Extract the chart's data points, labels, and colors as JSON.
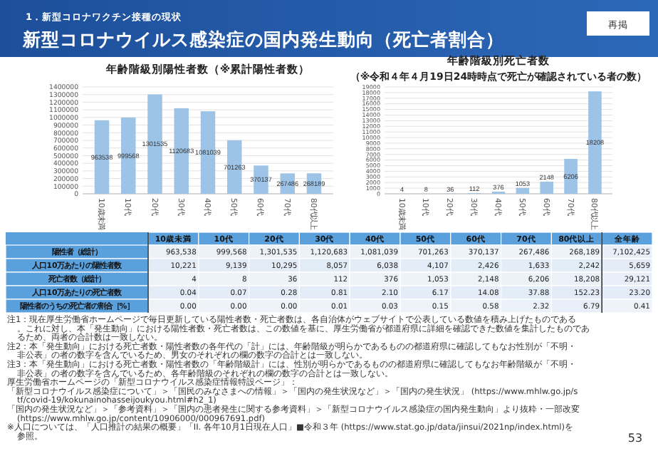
{
  "chart_data": [
    {
      "type": "other",
      "title": "新型コロナウイルス感染症の国内発生動向（死亡者割合）",
      "subtitle": "1．新型コロナワクチン接種の現状",
      "annotations": [
        "再掲"
      ]
    },
    {
      "type": "bar",
      "title": "年齢階級別陽性者数（※累計陽性者数）",
      "categories": [
        "10歳未満",
        "10代",
        "20代",
        "30代",
        "40代",
        "50代",
        "60代",
        "70代",
        "80代以上"
      ],
      "values": [
        963538,
        999568,
        1301535,
        1120683,
        1081039,
        701263,
        370137,
        267486,
        268189
      ],
      "color": "#9dc3e6",
      "ylim": [
        0,
        1400000
      ],
      "yticks": [
        0,
        100000,
        200000,
        300000,
        400000,
        500000,
        600000,
        700000,
        800000,
        900000,
        1000000,
        1100000,
        1200000,
        1300000,
        1400000
      ],
      "grid": "y",
      "data_labels": true
    },
    {
      "type": "bar",
      "title": "年齢階級別死亡者数",
      "subtitle": "（※令和４年４月19日24時時点で死亡が確認されている者の数）",
      "categories": [
        "10歳未満",
        "10代",
        "20代",
        "30代",
        "40代",
        "50代",
        "60代",
        "70代",
        "80代以上"
      ],
      "values": [
        4,
        8,
        36,
        112,
        376,
        1053,
        2148,
        6206,
        18208
      ],
      "color": "#9dc3e6",
      "ylim": [
        0,
        19000
      ],
      "yticks": [
        0,
        1000,
        2000,
        3000,
        4000,
        5000,
        6000,
        7000,
        8000,
        9000,
        10000,
        11000,
        12000,
        13000,
        14000,
        15000,
        16000,
        17000,
        18000,
        19000
      ],
      "grid": "y",
      "data_labels": true
    },
    {
      "type": "heatmap",
      "categories": [
        "10歳未満",
        "10代",
        "20代",
        "30代",
        "40代",
        "50代",
        "60代",
        "70代",
        "80代以上",
        "全年齢"
      ],
      "y_categories": [
        "陽性者（総計）",
        "人口10万あたりの陽性者数",
        "死亡者数（総計）",
        "人口10万あたりの死亡者数",
        "陽性者のうちの死亡者の割合［%］"
      ],
      "cells": [
        [
          963538,
          999568,
          1301535,
          1120683,
          1081039,
          701263,
          370137,
          267486,
          268189,
          7102425
        ],
        [
          10221,
          9139,
          10295,
          8057,
          6038,
          4107,
          2426,
          1633,
          2242,
          5659
        ],
        [
          4,
          8,
          36,
          112,
          376,
          1053,
          2148,
          6206,
          18208,
          29121
        ],
        [
          0.04,
          0.07,
          0.28,
          0.81,
          2.1,
          6.17,
          14.08,
          37.88,
          152.23,
          23.2
        ],
        [
          0.0,
          0.0,
          0.0,
          0.01,
          0.03,
          0.15,
          0.58,
          2.32,
          6.79,
          0.41
        ]
      ],
      "cell_labels": [
        [
          "963,538",
          "999,568",
          "1,301,535",
          "1,120,683",
          "1,081,039",
          "701,263",
          "370,137",
          "267,486",
          "268,189",
          "7,102,425"
        ],
        [
          "10,221",
          "9,139",
          "10,295",
          "8,057",
          "6,038",
          "4,107",
          "2,426",
          "1,633",
          "2,242",
          "5,659"
        ],
        [
          "4",
          "8",
          "36",
          "112",
          "376",
          "1,053",
          "2,148",
          "6,206",
          "18,208",
          "29,121"
        ],
        [
          "0.04",
          "0.07",
          "0.28",
          "0.81",
          "2.10",
          "6.17",
          "14.08",
          "37.88",
          "152.23",
          "23.20"
        ],
        [
          "0.00",
          "0.00",
          "0.00",
          "0.01",
          "0.03",
          "0.15",
          "0.58",
          "2.32",
          "6.79",
          "0.41"
        ]
      ],
      "annotations": [
        "注1：現在厚生労働省ホームページで毎日更新している陽性者数・死亡者数は、各自治体がウェブサイトで公表している数値を積み上げたものである。これに対し、本「発生動向」における陽性者数・死亡者数は、この数値を基に、厚生労働省が都道府県に詳細を確認できた数値を集計したものであるため、両者の合計数は一致しない。",
        "注2：本「発生動向」における死亡者数・陽性者数の各年代の「計」には、年齢階級が明らかであるものの都道府県に確認してもなお性別が「不明・非公表」の者の数字を含んでいるため、男女のそれぞれの欄の数字の合計とは一致しない。",
        "注3：本「発生動向」における死亡者数・陽性者数の「年齢階級計」には、性別が明らかであるものの都道府県に確認してもなお年齢階級が「不明・非公表」の者の数字を含んでいるため、各年齢階級のそれぞれの欄の数字の合計とは一致しない。",
        "厚生労働省ホームページの「新型コロナウイルス感染症情報特設ページ」：",
        "「新型コロナウイルス感染症について」＞「国民のみなさまへの情報」＞「国内の発生状況など」＞「国内の発生状況」 (https://www.mhlw.go.jp/stf/covid-19/kokunainohasseijoukyou.html#h2_1)",
        "「国内の発生状況など」＞「参考資料」＞「国内の患者発生に関する参考資料」＞「新型コロナウイルス感染症の国内発生動向」より抜粋・一部改変 (https://www.mhlw.go.jp/content/10906000/000967691.pdf)",
        "※人口については、「人口推計の結果の概要」「II. 各年10月1日現在人口」■令和３年 (https://www.stat.go.jp/data/jinsui/2021np/index.html)を参照。",
        "53"
      ]
    }
  ]
}
